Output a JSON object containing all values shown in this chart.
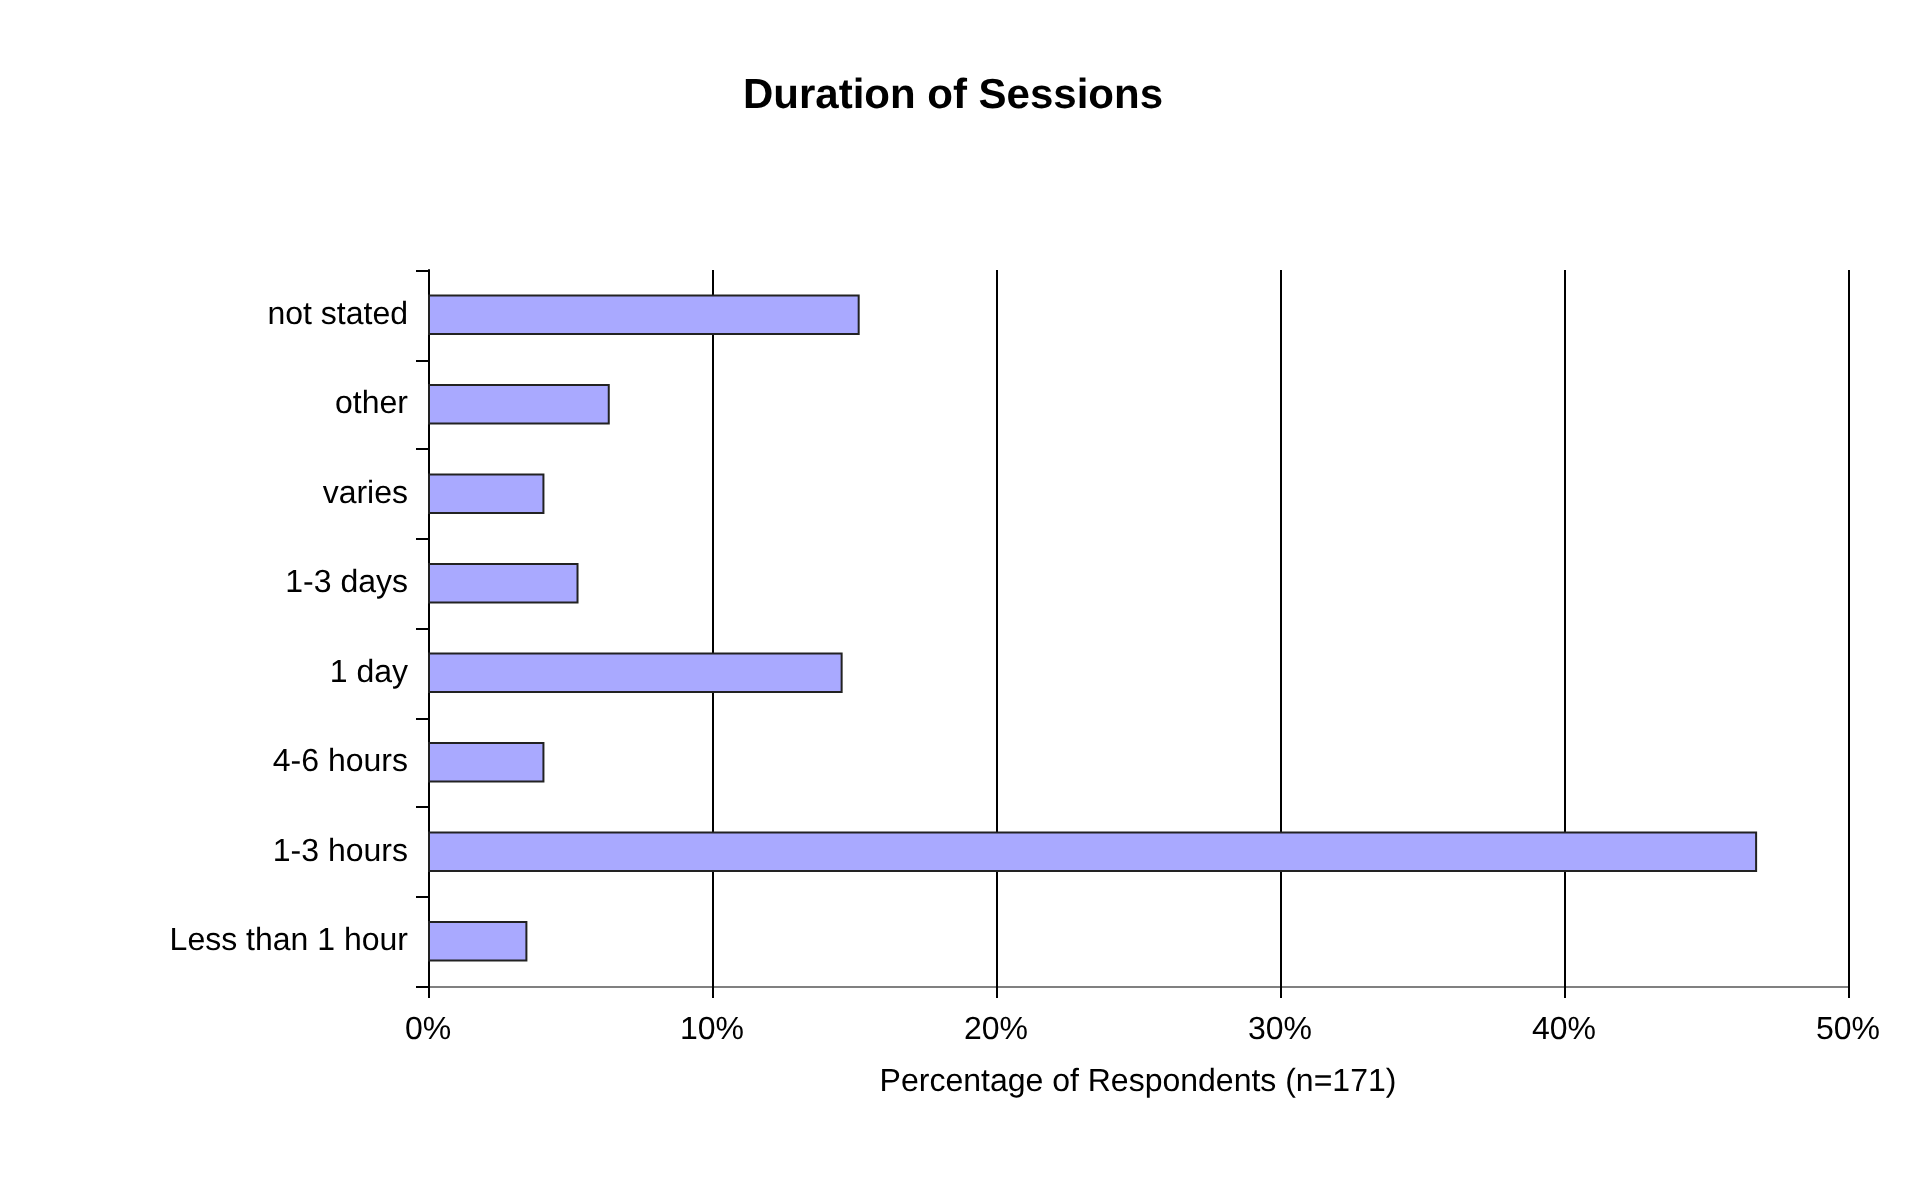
{
  "chart_data": {
    "type": "bar",
    "orientation": "horizontal",
    "title": "Duration of Sessions",
    "xlabel": "Percentage of Respondents (n=171)",
    "categories": [
      "not stated",
      "other",
      "varies",
      "1-3 days",
      "1 day",
      "4-6 hours",
      "1-3 hours",
      "Less than 1 hour"
    ],
    "values": [
      15.2,
      6.4,
      4.1,
      5.3,
      14.6,
      4.1,
      46.8,
      3.5
    ],
    "color": "#a9a9ff",
    "xlim": [
      0,
      50
    ],
    "xticks": [
      {
        "value": 0,
        "label": "0%"
      },
      {
        "value": 10,
        "label": "10%"
      },
      {
        "value": 20,
        "label": "20%"
      },
      {
        "value": 30,
        "label": "30%"
      },
      {
        "value": 40,
        "label": "40%"
      },
      {
        "value": 50,
        "label": "50%"
      }
    ],
    "grid": "x"
  }
}
